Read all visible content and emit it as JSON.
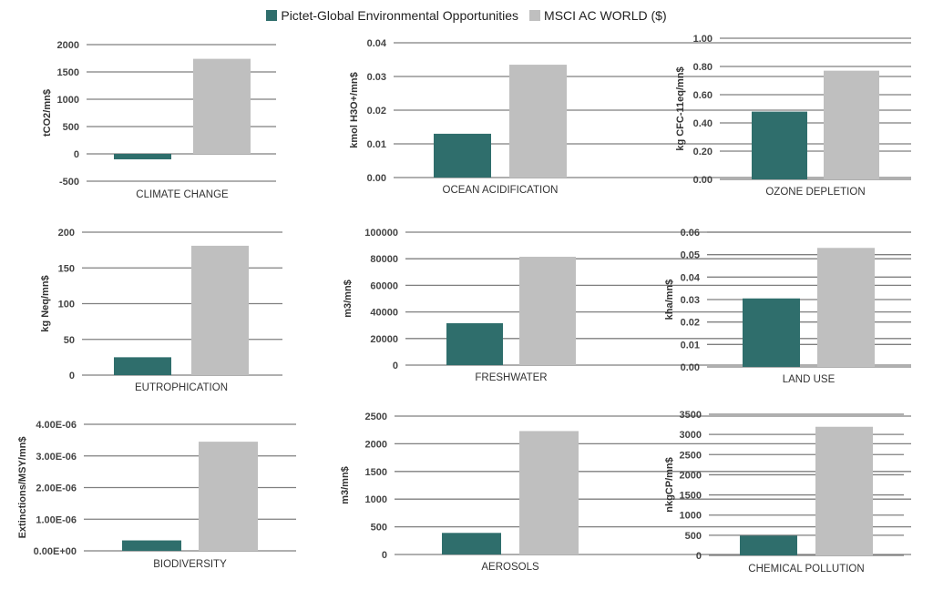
{
  "colors": {
    "pictet": "#2f6e6c",
    "msci": "#bfbfbf",
    "grid": "#7f7f7f",
    "text": "#333333"
  },
  "legend": [
    {
      "name": "Pictet-Global Environmental Opportunities",
      "color": "#2f6e6c"
    },
    {
      "name": "MSCI AC WORLD ($)",
      "color": "#bfbfbf"
    }
  ],
  "chart_data": [
    {
      "type": "bar",
      "title": "",
      "categories": [
        "CLIMATE CHANGE"
      ],
      "xlabel": "CLIMATE CHANGE",
      "ylabel": "tCO2/mn$",
      "ylim": [
        -500,
        2000
      ],
      "yticks": [
        -500,
        0,
        500,
        1000,
        1500,
        2000
      ],
      "ytick_labels": [
        "-500",
        "0",
        "500",
        "1000",
        "1500",
        "2000"
      ],
      "grid": true,
      "series": [
        {
          "name": "Pictet-Global Environmental Opportunities",
          "values": [
            -100
          ]
        },
        {
          "name": "MSCI AC WORLD ($)",
          "values": [
            1740
          ]
        }
      ]
    },
    {
      "type": "bar",
      "title": "",
      "categories": [
        "OCEAN ACIDIFICATION"
      ],
      "xlabel": "OCEAN ACIDIFICATION",
      "ylabel": "kmol H3O+/mn$",
      "ylim": [
        0,
        0.04
      ],
      "yticks": [
        0,
        0.01,
        0.02,
        0.03,
        0.04
      ],
      "ytick_labels": [
        "0.00",
        "0.01",
        "0.02",
        "0.03",
        "0.04"
      ],
      "grid": true,
      "series": [
        {
          "name": "Pictet-Global Environmental Opportunities",
          "values": [
            0.013
          ]
        },
        {
          "name": "MSCI AC WORLD ($)",
          "values": [
            0.0335
          ]
        }
      ]
    },
    {
      "type": "bar",
      "title": "",
      "categories": [
        "OZONE DEPLETION"
      ],
      "xlabel": "OZONE DEPLETION",
      "ylabel": "kg CFC-11eq/mn$",
      "ylim": [
        0,
        1.0
      ],
      "yticks": [
        0,
        0.2,
        0.4,
        0.6,
        0.8,
        1.0
      ],
      "ytick_labels": [
        "0.00",
        "0.20",
        "0.40",
        "0.60",
        "0.80",
        "1.00"
      ],
      "grid": true,
      "series": [
        {
          "name": "Pictet-Global Environmental Opportunities",
          "values": [
            0.48
          ]
        },
        {
          "name": "MSCI AC WORLD ($)",
          "values": [
            0.77
          ]
        }
      ]
    },
    {
      "type": "bar",
      "title": "",
      "categories": [
        "EUTROPHICATION"
      ],
      "xlabel": "EUTROPHICATION",
      "ylabel": "kg Neq/mn$",
      "ylim": [
        0,
        200
      ],
      "yticks": [
        0,
        50,
        100,
        150,
        200
      ],
      "ytick_labels": [
        "0",
        "50",
        "100",
        "150",
        "200"
      ],
      "grid": true,
      "series": [
        {
          "name": "Pictet-Global Environmental Opportunities",
          "values": [
            25
          ]
        },
        {
          "name": "MSCI AC WORLD ($)",
          "values": [
            181
          ]
        }
      ]
    },
    {
      "type": "bar",
      "title": "",
      "categories": [
        "FRESHWATER"
      ],
      "xlabel": "FRESHWATER",
      "ylabel": "m3/mn$",
      "ylim": [
        0,
        100000
      ],
      "yticks": [
        0,
        20000,
        40000,
        60000,
        80000,
        100000
      ],
      "ytick_labels": [
        "0",
        "20000",
        "40000",
        "60000",
        "80000",
        "100000"
      ],
      "grid": true,
      "series": [
        {
          "name": "Pictet-Global Environmental Opportunities",
          "values": [
            31500
          ]
        },
        {
          "name": "MSCI AC WORLD ($)",
          "values": [
            81500
          ]
        }
      ]
    },
    {
      "type": "bar",
      "title": "",
      "categories": [
        "LAND USE"
      ],
      "xlabel": "LAND USE",
      "ylabel": "kha/mn$",
      "ylim": [
        0,
        0.06
      ],
      "yticks": [
        0,
        0.01,
        0.02,
        0.03,
        0.04,
        0.05,
        0.06
      ],
      "ytick_labels": [
        "0.00",
        "0.01",
        "0.02",
        "0.03",
        "0.04",
        "0.05",
        "0.06"
      ],
      "grid": true,
      "series": [
        {
          "name": "Pictet-Global Environmental Opportunities",
          "values": [
            0.0305
          ]
        },
        {
          "name": "MSCI AC WORLD ($)",
          "values": [
            0.053
          ]
        }
      ]
    },
    {
      "type": "bar",
      "title": "",
      "categories": [
        "BIODIVERSITY"
      ],
      "xlabel": "BIODIVERSITY",
      "ylabel": "Extinctions/MSY/mn$",
      "ylim": [
        0,
        4e-06
      ],
      "yticks": [
        0,
        1e-06,
        2e-06,
        3e-06,
        4e-06
      ],
      "ytick_labels": [
        "0.00E+00",
        "1.00E-06",
        "2.00E-06",
        "3.00E-06",
        "4.00E-06"
      ],
      "grid": true,
      "series": [
        {
          "name": "Pictet-Global Environmental Opportunities",
          "values": [
            3.3e-07
          ]
        },
        {
          "name": "MSCI AC WORLD ($)",
          "values": [
            3.45e-06
          ]
        }
      ]
    },
    {
      "type": "bar",
      "title": "",
      "categories": [
        "AEROSOLS"
      ],
      "xlabel": "AEROSOLS",
      "ylabel": "m3/mn$",
      "ylim": [
        0,
        2500
      ],
      "yticks": [
        0,
        500,
        1000,
        1500,
        2000,
        2500
      ],
      "ytick_labels": [
        "0",
        "500",
        "1000",
        "1500",
        "2000",
        "2500"
      ],
      "grid": true,
      "series": [
        {
          "name": "Pictet-Global Environmental Opportunities",
          "values": [
            390
          ]
        },
        {
          "name": "MSCI AC WORLD ($)",
          "values": [
            2230
          ]
        }
      ]
    },
    {
      "type": "bar",
      "title": "",
      "categories": [
        "CHEMICAL POLLUTION"
      ],
      "xlabel": "CHEMICAL POLLUTION",
      "ylabel": "nkgCP/mn$",
      "ylim": [
        0,
        3500
      ],
      "yticks": [
        0,
        500,
        1000,
        1500,
        2000,
        2500,
        3000,
        3500
      ],
      "ytick_labels": [
        "0",
        "500",
        "1000",
        "1500",
        "2000",
        "2500",
        "3000",
        "3500"
      ],
      "grid": true,
      "series": [
        {
          "name": "Pictet-Global Environmental Opportunities",
          "values": [
            490
          ]
        },
        {
          "name": "MSCI AC WORLD ($)",
          "values": [
            3190
          ]
        }
      ]
    }
  ]
}
